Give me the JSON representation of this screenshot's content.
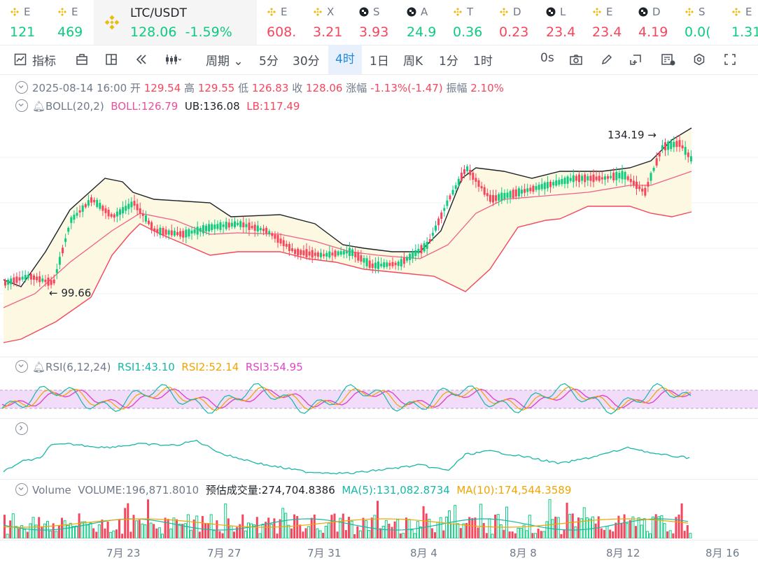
{
  "tickers": [
    {
      "top": "E",
      "value": "121",
      "dir": "up",
      "icon": "binance-coin-icon"
    },
    {
      "top": "E",
      "value": "469",
      "dir": "up",
      "icon": "binance-coin-icon"
    },
    {
      "top": "LTC/USDT",
      "value": "128.06",
      "change": "-1.59%",
      "dir": "down",
      "icon": "binance-coin-icon",
      "active": true
    },
    {
      "top": "E",
      "value": "608.",
      "dir": "down",
      "icon": "binance-coin-icon"
    },
    {
      "top": "X",
      "value": "3.21",
      "dir": "down",
      "icon": "binance-coin-icon"
    },
    {
      "top": "S",
      "value": "3.93",
      "dir": "down",
      "icon": "checkered-coin-icon"
    },
    {
      "top": "A",
      "value": "24.9",
      "dir": "up",
      "icon": "checkered-coin-icon"
    },
    {
      "top": "T",
      "value": "0.36",
      "dir": "up",
      "icon": "binance-coin-icon"
    },
    {
      "top": "D",
      "value": "0.23",
      "dir": "down",
      "icon": "binance-coin-icon"
    },
    {
      "top": "L",
      "value": "23.4",
      "dir": "down",
      "icon": "checkered-coin-icon"
    },
    {
      "top": "E",
      "value": "23.4",
      "dir": "down",
      "icon": "binance-coin-icon"
    },
    {
      "top": "D",
      "value": "4.19",
      "dir": "down",
      "icon": "checkered-coin-icon"
    },
    {
      "top": "S",
      "value": "0.0(",
      "dir": "up",
      "icon": "binance-coin-icon"
    },
    {
      "top": "E",
      "value": "1.31",
      "dir": "up",
      "icon": "binance-coin-icon"
    }
  ],
  "toolbar": {
    "indicators": "指标",
    "period": "周期",
    "intervals": [
      "5分",
      "30分",
      "4时",
      "1日",
      "周K",
      "1分",
      "1时"
    ],
    "selected_interval": "4时",
    "countdown": "0s"
  },
  "ohlc": {
    "datetime": "2025-08-14 16:00",
    "open_label": "开",
    "open": "129.54",
    "high_label": "高",
    "high": "129.55",
    "low_label": "低",
    "low": "126.83",
    "close_label": "收",
    "close": "128.06",
    "change_label": "涨幅",
    "change": "-1.13%(-1.47)",
    "amp_label": "振幅",
    "amp": "2.10%"
  },
  "boll": {
    "name": "BOLL(20,2)",
    "mid": "BOLL:126.79",
    "ub": "UB:136.08",
    "lb": "LB:117.49"
  },
  "annotations": {
    "high": "134.19",
    "low": "99.66"
  },
  "rsi": {
    "name": "RSI(6,12,24)",
    "rsi1": "RSI1:43.10",
    "rsi2": "RSI2:52.14",
    "rsi3": "RSI3:54.95"
  },
  "volume": {
    "name": "Volume",
    "vol": "VOLUME:196,871.8010",
    "est": "预估成交量:274,704.8386",
    "ma5": "MA(5):131,082.8734",
    "ma10": "MA(10):174,544.3589"
  },
  "x_axis": [
    "7月 23",
    "7月 27",
    "7月 31",
    "8月 4",
    "8月 8",
    "8月 12",
    "8月 16"
  ],
  "colors": {
    "up": "#0ecb81",
    "down": "#f6465d",
    "boll_fill": "#fdf8e1",
    "accent": "#1e88e5",
    "rsi_band": "#f1dcfa"
  }
}
